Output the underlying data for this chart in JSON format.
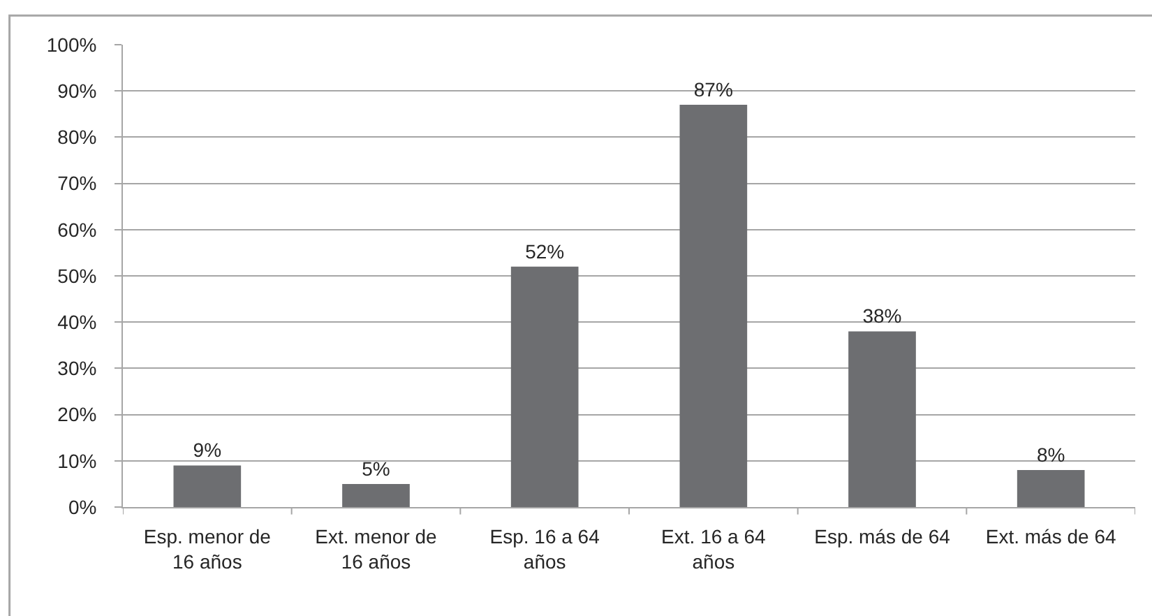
{
  "chart_data": {
    "type": "bar",
    "categories": [
      "Esp. menor de 16 años",
      "Ext. menor de 16 años",
      "Esp. 16 a 64 años",
      "Ext. 16 a 64 años",
      "Esp. más de 64",
      "Ext. más de 64"
    ],
    "values": [
      9,
      5,
      52,
      87,
      38,
      8
    ],
    "value_labels": [
      "9%",
      "5%",
      "52%",
      "87%",
      "38%",
      "8%"
    ],
    "color": "#6d6e71",
    "ylim": [
      0,
      100
    ],
    "yticks": [
      {
        "value": 0,
        "label": "0%"
      },
      {
        "value": 10,
        "label": "10%"
      },
      {
        "value": 20,
        "label": "20%"
      },
      {
        "value": 30,
        "label": "30%"
      },
      {
        "value": 40,
        "label": "40%"
      },
      {
        "value": 50,
        "label": "50%"
      },
      {
        "value": 60,
        "label": "60%"
      },
      {
        "value": 70,
        "label": "70%"
      },
      {
        "value": 80,
        "label": "80%"
      },
      {
        "value": 90,
        "label": "90%"
      },
      {
        "value": 100,
        "label": "100%"
      }
    ],
    "grid": "y"
  }
}
